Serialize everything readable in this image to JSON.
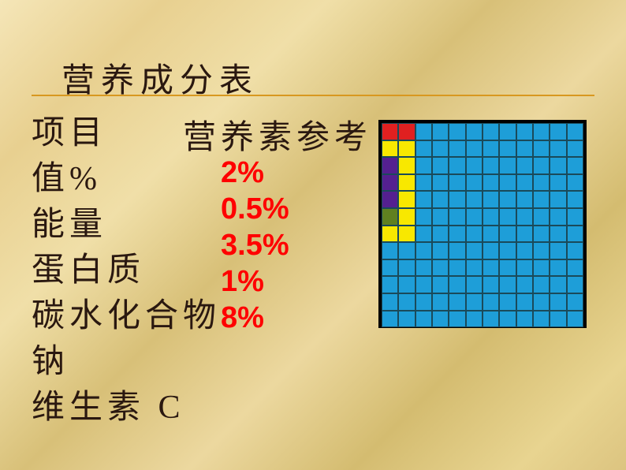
{
  "title": "营养成分表",
  "header1": "项目",
  "header2": "营养素参考",
  "labels": {
    "row0": "值%",
    "row1": "能量",
    "row2": "蛋白质",
    "row3": "碳水化合物",
    "row4": "钠",
    "row5": "维生素 C"
  },
  "percents": {
    "p0": "2%",
    "p1": "0.5%",
    "p2": "3.5%",
    "p3": "1%",
    "p4": "8%"
  },
  "grid": {
    "rows": 12,
    "cols": 12,
    "colors": {
      "blue": "#1e9ed8",
      "red": "#e02020",
      "yellow": "#f8e800",
      "purple": "#542090",
      "green": "#608020",
      "border": "#1a4a5a",
      "frame": "#000000"
    },
    "cells": [
      [
        "red",
        "red",
        "blue",
        "blue",
        "blue",
        "blue",
        "blue",
        "blue",
        "blue",
        "blue",
        "blue",
        "blue"
      ],
      [
        "yellow",
        "yellow",
        "blue",
        "blue",
        "blue",
        "blue",
        "blue",
        "blue",
        "blue",
        "blue",
        "blue",
        "blue"
      ],
      [
        "purple",
        "yellow",
        "blue",
        "blue",
        "blue",
        "blue",
        "blue",
        "blue",
        "blue",
        "blue",
        "blue",
        "blue"
      ],
      [
        "purple",
        "yellow",
        "blue",
        "blue",
        "blue",
        "blue",
        "blue",
        "blue",
        "blue",
        "blue",
        "blue",
        "blue"
      ],
      [
        "purple",
        "yellow",
        "blue",
        "blue",
        "blue",
        "blue",
        "blue",
        "blue",
        "blue",
        "blue",
        "blue",
        "blue"
      ],
      [
        "green",
        "yellow",
        "blue",
        "blue",
        "blue",
        "blue",
        "blue",
        "blue",
        "blue",
        "blue",
        "blue",
        "blue"
      ],
      [
        "yellow",
        "yellow",
        "blue",
        "blue",
        "blue",
        "blue",
        "blue",
        "blue",
        "blue",
        "blue",
        "blue",
        "blue"
      ],
      [
        "blue",
        "blue",
        "blue",
        "blue",
        "blue",
        "blue",
        "blue",
        "blue",
        "blue",
        "blue",
        "blue",
        "blue"
      ],
      [
        "blue",
        "blue",
        "blue",
        "blue",
        "blue",
        "blue",
        "blue",
        "blue",
        "blue",
        "blue",
        "blue",
        "blue"
      ],
      [
        "blue",
        "blue",
        "blue",
        "blue",
        "blue",
        "blue",
        "blue",
        "blue",
        "blue",
        "blue",
        "blue",
        "blue"
      ],
      [
        "blue",
        "blue",
        "blue",
        "blue",
        "blue",
        "blue",
        "blue",
        "blue",
        "blue",
        "blue",
        "blue",
        "blue"
      ],
      [
        "blue",
        "blue",
        "blue",
        "blue",
        "blue",
        "blue",
        "blue",
        "blue",
        "blue",
        "blue",
        "blue",
        "blue"
      ]
    ]
  }
}
